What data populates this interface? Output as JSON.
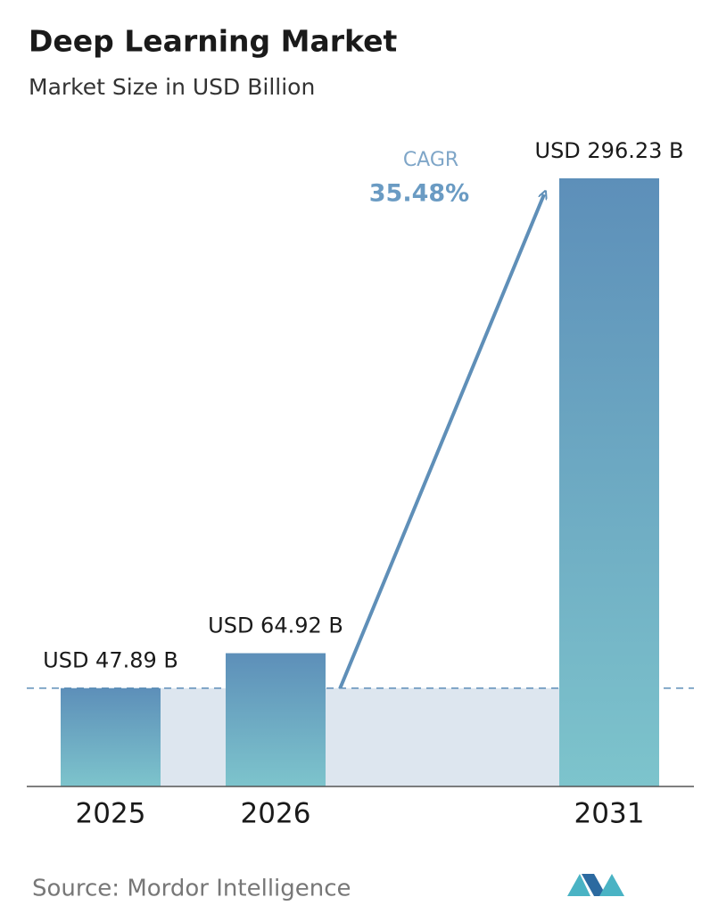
{
  "chart_data": {
    "type": "bar",
    "title": "Deep Learning Market",
    "subtitle": "Market Size in USD Billion",
    "categories": [
      "2025",
      "2026",
      "2031"
    ],
    "values": [
      47.89,
      64.92,
      296.23
    ],
    "value_labels": [
      "USD 47.89 B",
      "USD 64.92 B",
      "USD 296.23 B"
    ],
    "cagr_label": "CAGR",
    "cagr_value": "35.48%",
    "source": "Source:  Mordor Intelligence"
  }
}
